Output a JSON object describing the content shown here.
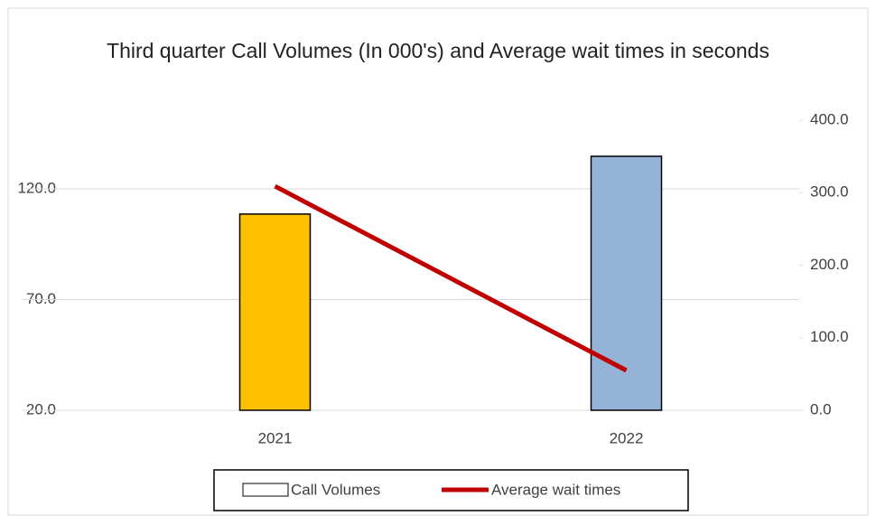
{
  "chart_data": {
    "type": "bar_line",
    "title": "Third quarter Call Volumes (In 000's) and Average wait times in seconds",
    "categories": [
      "2021",
      "2022"
    ],
    "series": [
      {
        "name": "Call Volumes",
        "type": "bar",
        "color": "#ffffff",
        "colors": [
          "#ffc000",
          "#95b3d7"
        ],
        "values": [
          108.6,
          134.7
        ]
      },
      {
        "name": "Average wait times",
        "type": "line",
        "axis": "y2",
        "color": "#c00000",
        "values": [
          309,
          55
        ]
      }
    ],
    "ylim": [
      20,
      151
    ],
    "yticks": [
      {
        "value": 20,
        "label": "20.0"
      },
      {
        "value": 70,
        "label": "70.0"
      },
      {
        "value": 120,
        "label": "120.0"
      }
    ],
    "y2lim": [
      0,
      400
    ],
    "y2ticks": [
      {
        "value": 0,
        "label": "0.0"
      },
      {
        "value": 100,
        "label": "100.0"
      },
      {
        "value": 200,
        "label": "200.0"
      },
      {
        "value": 300,
        "label": "300.0"
      },
      {
        "value": 400,
        "label": "400.0"
      }
    ],
    "grid": true,
    "legend": "bottom"
  }
}
